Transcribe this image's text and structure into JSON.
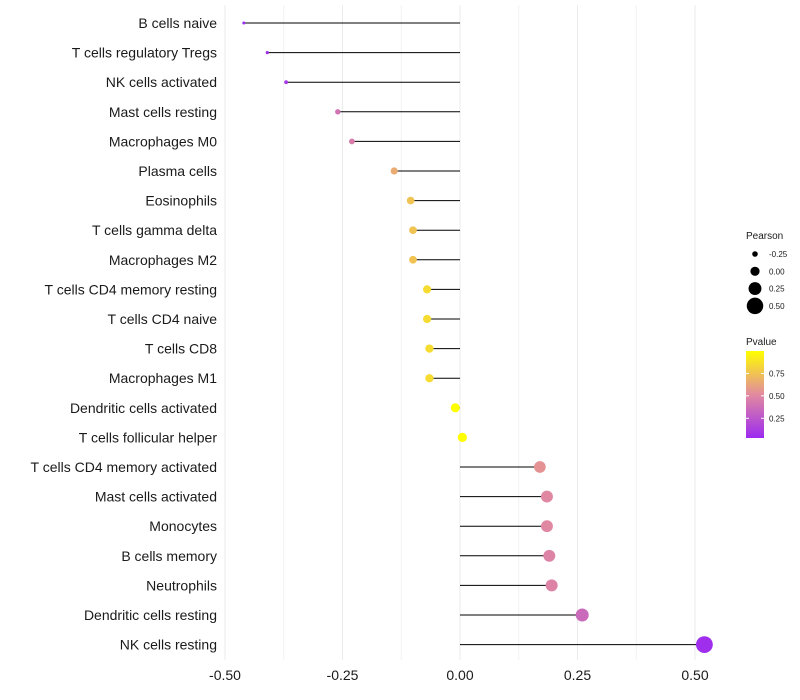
{
  "chart_data": {
    "type": "lollipop",
    "title": "",
    "xlabel": "",
    "ylabel": "",
    "xlim": [
      -0.5,
      0.52
    ],
    "x_ticks": [
      -0.5,
      -0.25,
      0.0,
      0.25,
      0.5
    ],
    "x_tick_labels": [
      "-0.50",
      "-0.25",
      "0.00",
      "0.25",
      "0.50"
    ],
    "grid": true,
    "categories": [
      "B cells naive",
      "T cells regulatory  Tregs",
      "NK cells activated",
      "Mast cells resting",
      "Macrophages M0",
      "Plasma cells",
      "Eosinophils",
      "T cells gamma delta",
      "Macrophages M2",
      "T cells CD4 memory resting",
      "T cells CD4 naive",
      "T cells CD8",
      "Macrophages M1",
      "Dendritic cells activated",
      "T cells follicular helper",
      "T cells CD4 memory activated",
      "Mast cells activated",
      "Monocytes",
      "B cells memory",
      "Neutrophils",
      "Dendritic cells resting",
      "NK cells resting"
    ],
    "pearson": [
      -0.46,
      -0.41,
      -0.37,
      -0.26,
      -0.23,
      -0.14,
      -0.105,
      -0.1,
      -0.1,
      -0.07,
      -0.07,
      -0.065,
      -0.065,
      -0.01,
      0.005,
      0.17,
      0.185,
      0.185,
      0.19,
      0.195,
      0.26,
      0.52
    ],
    "pvalue": [
      0.02,
      0.05,
      0.1,
      0.4,
      0.45,
      0.65,
      0.75,
      0.75,
      0.75,
      0.85,
      0.85,
      0.85,
      0.85,
      1.0,
      1.0,
      0.55,
      0.5,
      0.5,
      0.48,
      0.48,
      0.35,
      0.05
    ],
    "legend": {
      "size": {
        "title": "Pearson",
        "labels": [
          "-0.25",
          "0.00",
          "0.25",
          "0.50"
        ],
        "values": [
          -0.25,
          0.0,
          0.25,
          0.5
        ]
      },
      "color": {
        "title": "Pvalue",
        "labels": [
          "0.75",
          "0.50",
          "0.25"
        ],
        "values": [
          0.75,
          0.5,
          0.25
        ],
        "range": [
          0.03,
          1.0
        ],
        "low_color": "#9c2bf0",
        "mid_color": "#e28aa0",
        "high_color": "#ffff00"
      },
      "position": "right"
    }
  }
}
